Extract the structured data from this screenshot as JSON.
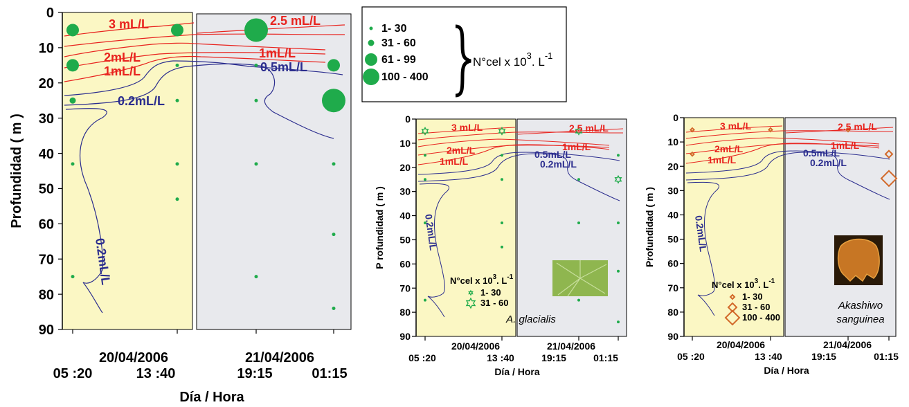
{
  "colors": {
    "day_bg": "#fbf7c4",
    "night_bg": "#e8e9ed",
    "marker": "#1fab4b",
    "marker_ak": "#d2692a",
    "oxygen_red": "#e8231e",
    "oxygen_blue": "#2b2d8e"
  },
  "legend_main": {
    "items": [
      "1- 30",
      "31 - 60",
      "61 - 99",
      "100 - 400"
    ],
    "unit_prefix": "N°cel x 10",
    "unit_exp": "3",
    "unit_mid": ". L",
    "unit_exp2": "-1"
  },
  "chart_data": [
    {
      "type": "scatter",
      "panel": "total",
      "ylabel": "Profundidad ( m )",
      "xlabel": "Día / Hora",
      "ylim": [
        0,
        90
      ],
      "yticks": [
        "0",
        "10",
        "20",
        "30",
        "40",
        "50",
        "60",
        "70",
        "80",
        "90"
      ],
      "date_labels": [
        "20/04/2006",
        "21/04/2006"
      ],
      "time_labels": [
        "05 :20",
        "13 :40",
        "19:15",
        "01:15"
      ],
      "points": [
        {
          "t": 0,
          "depth": 5,
          "size_class": 2
        },
        {
          "t": 0,
          "depth": 15,
          "size_class": 2
        },
        {
          "t": 0,
          "depth": 25,
          "size_class": 1
        },
        {
          "t": 0,
          "depth": 43,
          "size_class": 0
        },
        {
          "t": 0,
          "depth": 75,
          "size_class": 0
        },
        {
          "t": 1,
          "depth": 5,
          "size_class": 2
        },
        {
          "t": 1,
          "depth": 15,
          "size_class": 0
        },
        {
          "t": 1,
          "depth": 25,
          "size_class": 0
        },
        {
          "t": 1,
          "depth": 43,
          "size_class": 0
        },
        {
          "t": 1,
          "depth": 53,
          "size_class": 0
        },
        {
          "t": 2,
          "depth": 5,
          "size_class": 3
        },
        {
          "t": 2,
          "depth": 15,
          "size_class": 0
        },
        {
          "t": 2,
          "depth": 25,
          "size_class": 0
        },
        {
          "t": 2,
          "depth": 43,
          "size_class": 0
        },
        {
          "t": 2,
          "depth": 75,
          "size_class": 0
        },
        {
          "t": 3,
          "depth": 15,
          "size_class": 2
        },
        {
          "t": 3,
          "depth": 25,
          "size_class": 3
        },
        {
          "t": 3,
          "depth": 43,
          "size_class": 0
        },
        {
          "t": 3,
          "depth": 63,
          "size_class": 0
        },
        {
          "t": 3,
          "depth": 84,
          "size_class": 0
        }
      ],
      "isoline_labels": [
        "3 mL/L",
        "2.5 mL/L",
        "2mL/L",
        "1mL/L",
        "1mL/L",
        "0.5mL/L",
        "0.2mL/L",
        "0.2mL/L"
      ]
    },
    {
      "type": "scatter",
      "panel": "A. glacialis",
      "species": "A. glacialis",
      "ylabel": "P rofundidad ( m )",
      "xlabel": "Día / Hora",
      "ylim": [
        0,
        90
      ],
      "yticks": [
        "0",
        "10",
        "20",
        "30",
        "40",
        "50",
        "60",
        "70",
        "80",
        "90"
      ],
      "date_labels": [
        "20/04/2006",
        "21/04/2006"
      ],
      "time_labels": [
        "05 :20",
        "13 :40",
        "19:15",
        "01:15"
      ],
      "legend_title": "N°cel x 10",
      "legend_items": [
        "1- 30",
        "31 - 60"
      ],
      "points": [
        {
          "t": 0,
          "depth": 5,
          "size_class": 1
        },
        {
          "t": 0,
          "depth": 15,
          "size_class": 0
        },
        {
          "t": 0,
          "depth": 25,
          "size_class": 0
        },
        {
          "t": 0,
          "depth": 43,
          "size_class": 0
        },
        {
          "t": 0,
          "depth": 75,
          "size_class": 0
        },
        {
          "t": 1,
          "depth": 5,
          "size_class": 1
        },
        {
          "t": 1,
          "depth": 15,
          "size_class": 0
        },
        {
          "t": 1,
          "depth": 25,
          "size_class": 0
        },
        {
          "t": 1,
          "depth": 43,
          "size_class": 0
        },
        {
          "t": 1,
          "depth": 53,
          "size_class": 0
        },
        {
          "t": 2,
          "depth": 5,
          "size_class": 1
        },
        {
          "t": 2,
          "depth": 25,
          "size_class": 0
        },
        {
          "t": 2,
          "depth": 43,
          "size_class": 0
        },
        {
          "t": 2,
          "depth": 75,
          "size_class": 0
        },
        {
          "t": 3,
          "depth": 15,
          "size_class": 0
        },
        {
          "t": 3,
          "depth": 25,
          "size_class": 1
        },
        {
          "t": 3,
          "depth": 43,
          "size_class": 0
        },
        {
          "t": 3,
          "depth": 63,
          "size_class": 0
        },
        {
          "t": 3,
          "depth": 84,
          "size_class": 0
        }
      ],
      "isoline_labels": [
        "3 mL/L",
        "2.5 mL/L",
        "2mL/L",
        "1mL/L",
        "1mL/L",
        "0.5mL/L",
        "0.2mL/L",
        "0.2mL/L"
      ]
    },
    {
      "type": "scatter",
      "panel": "Akashiwo sanguinea",
      "species": [
        "Akashiwo",
        "sanguinea"
      ],
      "ylabel": "Profundidad ( m )",
      "xlabel": "Día / Hora",
      "ylim": [
        0,
        90
      ],
      "yticks": [
        "0",
        "10",
        "20",
        "30",
        "40",
        "50",
        "60",
        "70",
        "80",
        "90"
      ],
      "date_labels": [
        "20/04/2006",
        "21/04/2006"
      ],
      "time_labels": [
        "05 :20",
        "13 :40",
        "19:15",
        "01:15"
      ],
      "legend_title": "N°cel x 10",
      "legend_items": [
        "1- 30",
        "31 - 60",
        "100 - 400"
      ],
      "points": [
        {
          "t": 0,
          "depth": 5,
          "size_class": 0
        },
        {
          "t": 0,
          "depth": 15,
          "size_class": 0
        },
        {
          "t": 1,
          "depth": 5,
          "size_class": 0
        },
        {
          "t": 2,
          "depth": 5,
          "size_class": 0
        },
        {
          "t": 3,
          "depth": 15,
          "size_class": 1
        },
        {
          "t": 3,
          "depth": 25,
          "size_class": 3
        }
      ],
      "isoline_labels": [
        "3 mL/L",
        "2.5 mL/L",
        "2mL/L",
        "1mL/L",
        "1mL/L",
        "0.5mL/L",
        "0.2mL/L",
        "0.2mL/L"
      ]
    }
  ]
}
